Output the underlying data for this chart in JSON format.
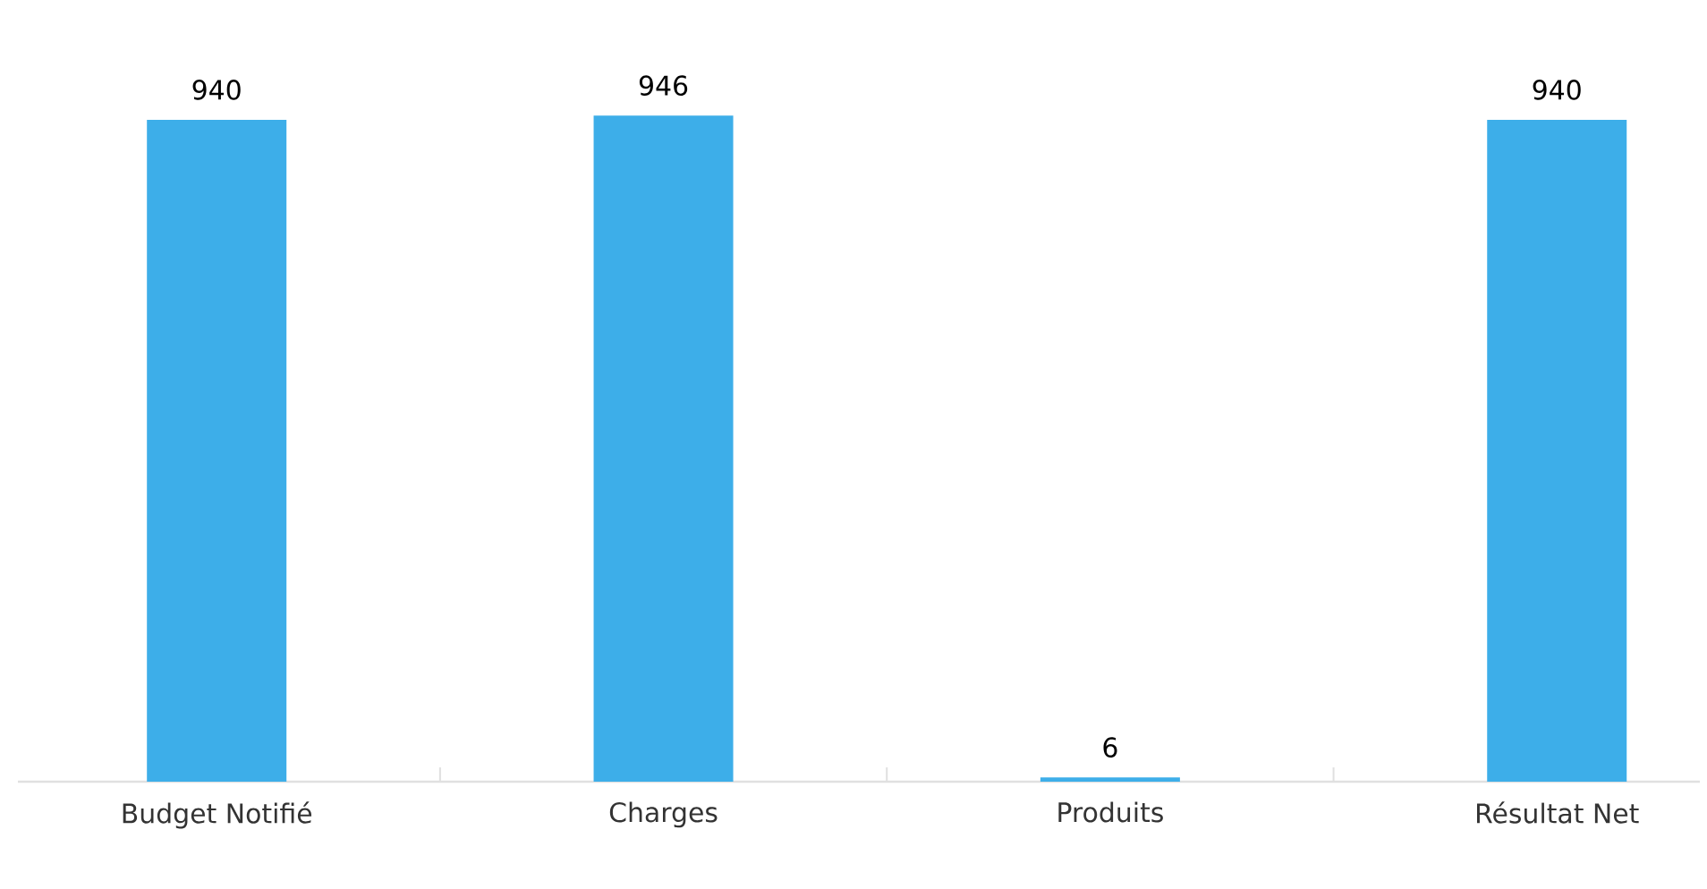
{
  "chart_data": {
    "type": "bar",
    "categories": [
      "Budget Notifié",
      "Charges",
      "Produits",
      "Résultat Net"
    ],
    "values": [
      940,
      946,
      6,
      940
    ],
    "color": "#3daee9",
    "data_labels": true
  }
}
